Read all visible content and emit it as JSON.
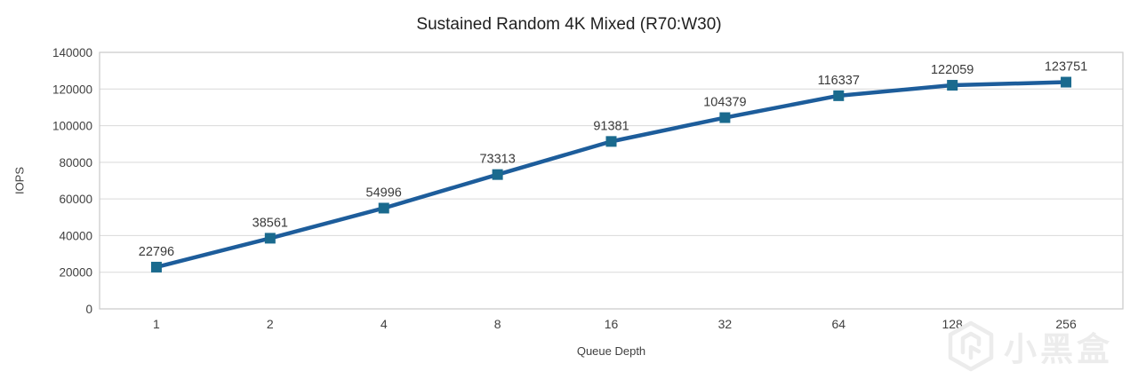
{
  "chart": {
    "title": "Sustained Random 4K Mixed (R70:W30)",
    "y_axis_title": "IOPS",
    "x_axis_title": "Queue Depth"
  },
  "watermark": {
    "text": "小黑盒",
    "logo_icon": "xiaoheihe-hexagon-logo"
  },
  "colors": {
    "line": "#1d5d9b",
    "marker": "#1a6a8e",
    "gridline": "#d9d9d9",
    "plot_border": "#c9c9c9",
    "tick_text": "#404040",
    "data_label_text": "#3a3a3a",
    "title_text": "#1f1f1f",
    "watermark": "#ececec",
    "background": "#ffffff"
  },
  "chart_data": {
    "type": "line",
    "title": "Sustained Random 4K Mixed (R70:W30)",
    "xlabel": "Queue Depth",
    "ylabel": "IOPS",
    "categories": [
      "1",
      "2",
      "4",
      "8",
      "16",
      "32",
      "64",
      "128",
      "256"
    ],
    "values": [
      22796,
      38561,
      54996,
      73313,
      91381,
      104379,
      116337,
      122059,
      123751
    ],
    "data_labels": [
      "22796",
      "38561",
      "54996",
      "73313",
      "91381",
      "104379",
      "116337",
      "122059",
      "123751"
    ],
    "ylim": [
      0,
      140000
    ],
    "yticks": [
      0,
      20000,
      40000,
      60000,
      80000,
      100000,
      120000,
      140000
    ],
    "grid": true,
    "legend": false,
    "marker_shape": "square"
  }
}
